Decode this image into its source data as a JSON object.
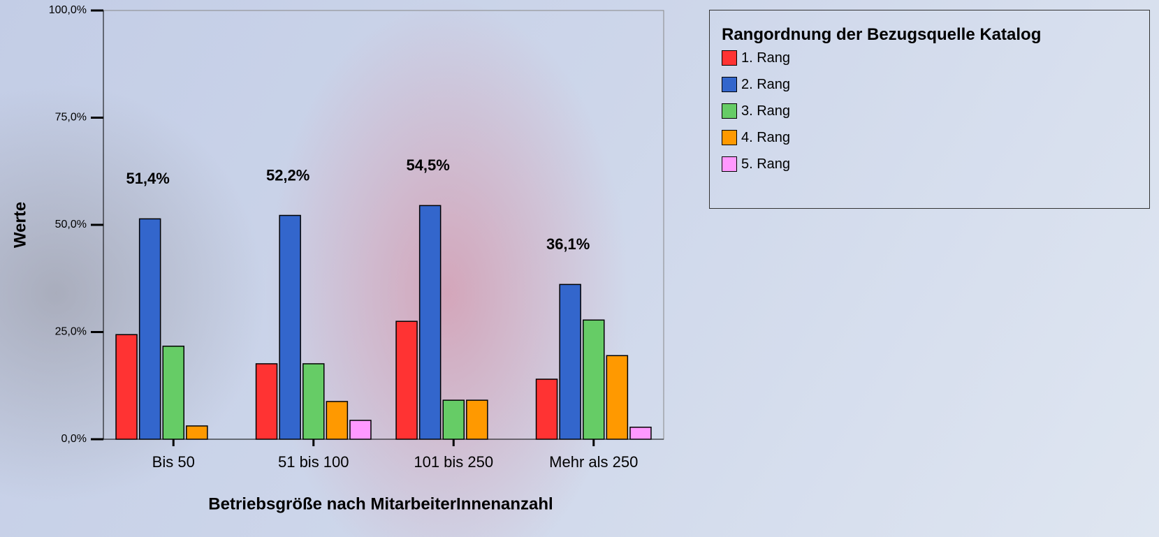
{
  "chart_data": {
    "type": "bar",
    "x_label": "Betriebsgröße nach MitarbeiterInnenanzahl",
    "y_label": "Werte",
    "legend_title": "Rangordnung der Bezugsquelle Katalog",
    "categories": [
      "Bis 50",
      "51 bis 100",
      "101 bis 250",
      "Mehr als 250"
    ],
    "series": [
      {
        "name": "1. Rang",
        "color": "#ff3333",
        "values": [
          24.4,
          17.6,
          27.5,
          14.0
        ]
      },
      {
        "name": "2. Rang",
        "color": "#3366cc",
        "values": [
          51.4,
          52.2,
          54.5,
          36.1
        ],
        "value_labels": [
          "51,4%",
          "52,2%",
          "54,5%",
          "36,1%"
        ]
      },
      {
        "name": "3. Rang",
        "color": "#66cc66",
        "values": [
          21.7,
          17.6,
          9.1,
          27.8
        ]
      },
      {
        "name": "4. Rang",
        "color": "#ff9900",
        "values": [
          3.1,
          8.8,
          9.1,
          19.5
        ]
      },
      {
        "name": "5. Rang",
        "color": "#ff99ff",
        "values": [
          null,
          4.4,
          null,
          2.8
        ]
      }
    ],
    "ylim": [
      0,
      100
    ],
    "yticks": [
      {
        "value": 0,
        "label": "0,0%"
      },
      {
        "value": 25,
        "label": "25,0%"
      },
      {
        "value": 50,
        "label": "50,0%"
      },
      {
        "value": 75,
        "label": "75,0%"
      },
      {
        "value": 100,
        "label": "100,0%"
      }
    ],
    "legend": "top-right"
  }
}
